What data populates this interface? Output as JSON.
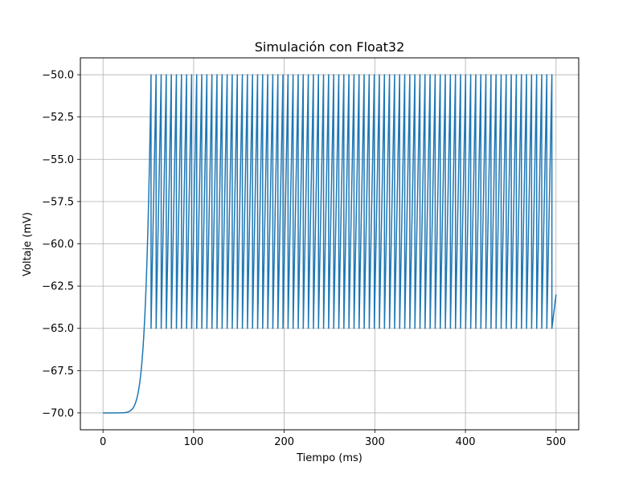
{
  "chart_data": {
    "type": "line",
    "title": "Simulación con Float32",
    "xlabel": "Tiempo (ms)",
    "ylabel": "Voltaje (mV)",
    "xlim": [
      -25,
      525
    ],
    "ylim": [
      -71,
      -49
    ],
    "xticks": [
      0,
      100,
      200,
      300,
      400,
      500
    ],
    "xtick_labels": [
      "0",
      "100",
      "200",
      "300",
      "400",
      "500"
    ],
    "yticks": [
      -70.0,
      -67.5,
      -65.0,
      -62.5,
      -60.0,
      -57.5,
      -55.0,
      -52.5,
      -50.0
    ],
    "ytick_labels": [
      "−70.0",
      "−67.5",
      "−65.0",
      "−62.5",
      "−60.0",
      "−57.5",
      "−55.0",
      "−52.5",
      "−50.0"
    ],
    "grid": true,
    "color": "#1f77b4",
    "series": [
      {
        "resting_potential": -70.0,
        "reset_potential": -65.0,
        "threshold": -50.0,
        "first_spike_time": 53,
        "interspike_interval": 5.6,
        "end_time": 500,
        "end_value": -63.0
      }
    ]
  }
}
